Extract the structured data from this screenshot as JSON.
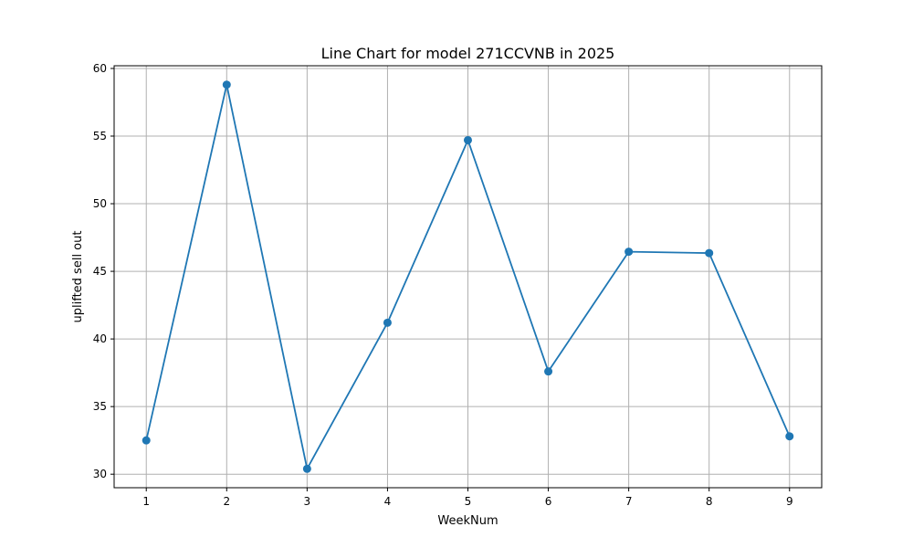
{
  "chart_data": {
    "type": "line",
    "title": "Line Chart for model 271CCVNB in 2025",
    "xlabel": "WeekNum",
    "ylabel": "uplifted sell out",
    "x": [
      1,
      2,
      3,
      4,
      5,
      6,
      7,
      8,
      9
    ],
    "series": [
      {
        "values": [
          32.5,
          58.8,
          30.4,
          41.2,
          54.7,
          37.6,
          46.45,
          46.35,
          32.8
        ],
        "color": "#1f77b4"
      }
    ],
    "xlim": [
      0.6,
      9.4
    ],
    "ylim": [
      29.0,
      60.2
    ],
    "xticks": [
      1,
      2,
      3,
      4,
      5,
      6,
      7,
      8,
      9
    ],
    "yticks": [
      30,
      35,
      40,
      45,
      50,
      55,
      60
    ],
    "grid": true,
    "marker": "circle"
  }
}
